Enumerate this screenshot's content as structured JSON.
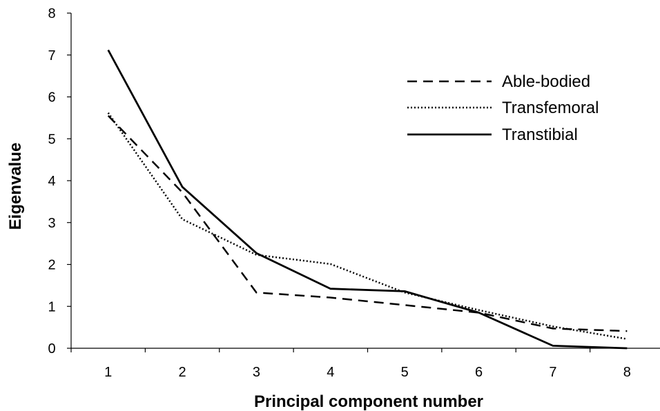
{
  "chart_data": {
    "type": "line",
    "xlabel": "Principal component number",
    "ylabel": "Eigenvalue",
    "x": [
      1,
      2,
      3,
      4,
      5,
      6,
      7,
      8
    ],
    "xlim": [
      0.5,
      8.5
    ],
    "ylim": [
      0,
      8
    ],
    "yticks": [
      0,
      1,
      2,
      3,
      4,
      5,
      6,
      7,
      8
    ],
    "grid": false,
    "legend_position": "top-right",
    "series": [
      {
        "name": "Able-bodied",
        "style": "dashed",
        "values": [
          5.55,
          3.72,
          1.33,
          1.21,
          1.03,
          0.85,
          0.47,
          0.41
        ]
      },
      {
        "name": "Transfemoral",
        "style": "dotted",
        "values": [
          5.62,
          3.08,
          2.23,
          2.01,
          1.33,
          0.91,
          0.52,
          0.22
        ]
      },
      {
        "name": "Transtibial",
        "style": "solid",
        "values": [
          7.12,
          3.85,
          2.27,
          1.42,
          1.36,
          0.85,
          0.06,
          0.0
        ]
      }
    ]
  }
}
